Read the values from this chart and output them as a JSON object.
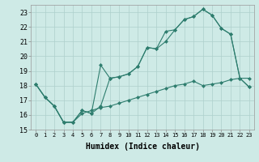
{
  "xlabel": "Humidex (Indice chaleur)",
  "x": [
    0,
    1,
    2,
    3,
    4,
    5,
    6,
    7,
    8,
    9,
    10,
    11,
    12,
    13,
    14,
    15,
    16,
    17,
    18,
    19,
    20,
    21,
    22,
    23
  ],
  "line1": [
    18.1,
    17.2,
    16.6,
    15.5,
    15.5,
    16.3,
    16.1,
    19.4,
    18.5,
    18.6,
    18.8,
    19.3,
    20.6,
    20.5,
    21.7,
    21.8,
    22.5,
    22.7,
    23.2,
    22.8,
    21.9,
    21.5,
    18.5,
    18.5
  ],
  "line2": [
    18.1,
    17.2,
    16.6,
    15.5,
    15.5,
    16.3,
    16.1,
    16.6,
    18.5,
    18.6,
    18.8,
    19.3,
    20.6,
    20.5,
    21.0,
    21.8,
    22.5,
    22.7,
    23.2,
    22.8,
    21.9,
    21.5,
    18.5,
    17.9
  ],
  "line3": [
    18.1,
    17.2,
    16.6,
    15.5,
    15.5,
    16.1,
    16.3,
    16.5,
    16.6,
    16.8,
    17.0,
    17.2,
    17.4,
    17.6,
    17.8,
    18.0,
    18.1,
    18.3,
    18.0,
    18.1,
    18.2,
    18.4,
    18.5,
    17.9
  ],
  "xlim": [
    -0.5,
    23.5
  ],
  "ylim": [
    15,
    23.5
  ],
  "yticks": [
    15,
    16,
    17,
    18,
    19,
    20,
    21,
    22,
    23
  ],
  "xticks": [
    0,
    1,
    2,
    3,
    4,
    5,
    6,
    7,
    8,
    9,
    10,
    11,
    12,
    13,
    14,
    15,
    16,
    17,
    18,
    19,
    20,
    21,
    22,
    23
  ],
  "bg_color": "#ceeae6",
  "grid_color": "#aed0cc",
  "line_color": "#2e7d6e",
  "markersize": 2.5
}
